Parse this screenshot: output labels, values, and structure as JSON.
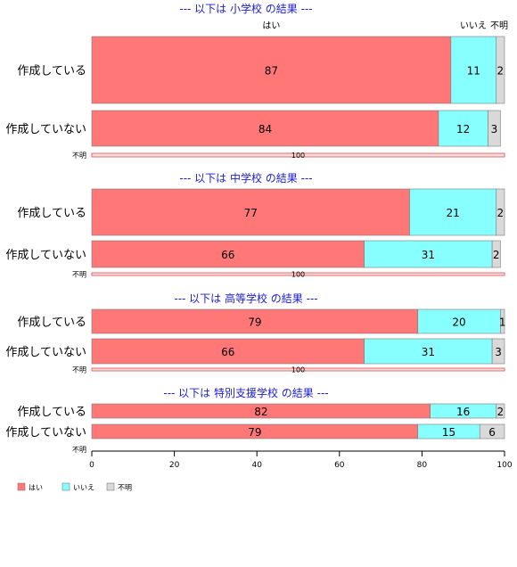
{
  "colors": {
    "yes": "#ff7777",
    "no": "#88ffff",
    "unknown": "#d9d9d9",
    "title": "#1c1cd6"
  },
  "column_headers": {
    "yes": "はい",
    "no": "いいえ",
    "unknown": "不明"
  },
  "legend": [
    {
      "key": "yes",
      "label": "はい"
    },
    {
      "key": "no",
      "label": "いいえ"
    },
    {
      "key": "unknown",
      "label": "不明"
    }
  ],
  "chart_data": {
    "type": "bar",
    "orientation": "horizontal",
    "stacked": true,
    "xlim": [
      0,
      100
    ],
    "xticks": [
      0,
      20,
      40,
      60,
      80,
      100
    ],
    "series": [
      {
        "name": "はい"
      },
      {
        "name": "いいえ"
      },
      {
        "name": "不明"
      }
    ],
    "panels": [
      {
        "title": "--- 以下は 小学校 の結果 ---",
        "rows": [
          {
            "label": "作成している",
            "values": [
              87,
              11,
              2
            ],
            "value_labels": [
              "87",
              "11",
              "2"
            ]
          },
          {
            "label": "作成していない",
            "values": [
              84,
              12,
              3
            ],
            "value_labels": [
              "84",
              "12",
              "3"
            ]
          },
          {
            "label": "不明",
            "values": [
              0,
              0,
              100
            ],
            "value_labels": [
              "",
              "",
              "100"
            ]
          }
        ]
      },
      {
        "title": "--- 以下は 中学校 の結果 ---",
        "rows": [
          {
            "label": "作成している",
            "values": [
              77,
              21,
              2
            ],
            "value_labels": [
              "77",
              "21",
              "2"
            ]
          },
          {
            "label": "作成していない",
            "values": [
              66,
              31,
              2
            ],
            "value_labels": [
              "66",
              "31",
              "2"
            ]
          },
          {
            "label": "不明",
            "values": [
              0,
              0,
              100
            ],
            "value_labels": [
              "",
              "",
              "100"
            ]
          }
        ]
      },
      {
        "title": "--- 以下は 高等学校 の結果 ---",
        "rows": [
          {
            "label": "作成している",
            "values": [
              79,
              20,
              1
            ],
            "value_labels": [
              "79",
              "20",
              "1"
            ]
          },
          {
            "label": "作成していない",
            "values": [
              66,
              31,
              3
            ],
            "value_labels": [
              "66",
              "31",
              "3"
            ]
          },
          {
            "label": "不明",
            "values": [
              0,
              0,
              100
            ],
            "value_labels": [
              "",
              "",
              "100"
            ]
          }
        ]
      },
      {
        "title": "--- 以下は 特別支援学校 の結果 ---",
        "rows": [
          {
            "label": "作成している",
            "values": [
              82,
              16,
              2
            ],
            "value_labels": [
              "82",
              "16",
              "2"
            ]
          },
          {
            "label": "作成していない",
            "values": [
              79,
              15,
              6
            ],
            "value_labels": [
              "79",
              "15",
              "6"
            ]
          },
          {
            "label": "不明",
            "values": [
              0,
              0,
              0
            ],
            "value_labels": [
              "",
              "",
              ""
            ]
          }
        ]
      }
    ]
  }
}
